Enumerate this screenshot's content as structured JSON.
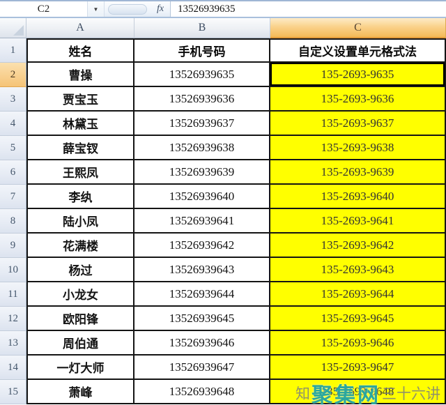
{
  "formula_bar": {
    "name_box_value": "C2",
    "dropdown_glyph": "▼",
    "fx_label": "fx",
    "formula_value": "13526939635"
  },
  "sheet": {
    "columns": [
      "A",
      "B",
      "C"
    ],
    "selected_column": "C",
    "header_row": {
      "num": "1",
      "name_header": "姓名",
      "phone_header": "手机号码",
      "format_header": "自定义设置单元格式法"
    },
    "rows": [
      {
        "num": "2",
        "name": "曹操",
        "phone": "13526939635",
        "formatted": "135-2693-9635",
        "selected": true
      },
      {
        "num": "3",
        "name": "贾宝玉",
        "phone": "13526939636",
        "formatted": "135-2693-9636"
      },
      {
        "num": "4",
        "name": "林黛玉",
        "phone": "13526939637",
        "formatted": "135-2693-9637"
      },
      {
        "num": "5",
        "name": "薛宝钗",
        "phone": "13526939638",
        "formatted": "135-2693-9638"
      },
      {
        "num": "6",
        "name": "王熙凤",
        "phone": "13526939639",
        "formatted": "135-2693-9639"
      },
      {
        "num": "7",
        "name": "李纨",
        "phone": "13526939640",
        "formatted": "135-2693-9640"
      },
      {
        "num": "8",
        "name": "陆小凤",
        "phone": "13526939641",
        "formatted": "135-2693-9641"
      },
      {
        "num": "9",
        "name": "花满楼",
        "phone": "13526939642",
        "formatted": "135-2693-9642"
      },
      {
        "num": "10",
        "name": "杨过",
        "phone": "13526939643",
        "formatted": "135-2693-9643"
      },
      {
        "num": "11",
        "name": "小龙女",
        "phone": "13526939644",
        "formatted": "135-2693-9644"
      },
      {
        "num": "12",
        "name": "欧阳锋",
        "phone": "13526939645",
        "formatted": "135-2693-9645"
      },
      {
        "num": "13",
        "name": "周伯通",
        "phone": "13526939646",
        "formatted": "135-2693-9646"
      },
      {
        "num": "14",
        "name": "一灯大师",
        "phone": "13526939647",
        "formatted": "135-2693-9647"
      },
      {
        "num": "15",
        "name": "萧峰",
        "phone": "13526939648",
        "formatted": "135-2693-9648"
      }
    ]
  },
  "watermark": {
    "prefix": "知",
    "brand": "聚集网",
    "suffix": "三十六讲"
  },
  "colors": {
    "highlight_yellow": "#FFFF00",
    "selected_header_orange": "#F4BA57",
    "watermark_teal": "#2BA79E",
    "selection_border": "#000000"
  }
}
